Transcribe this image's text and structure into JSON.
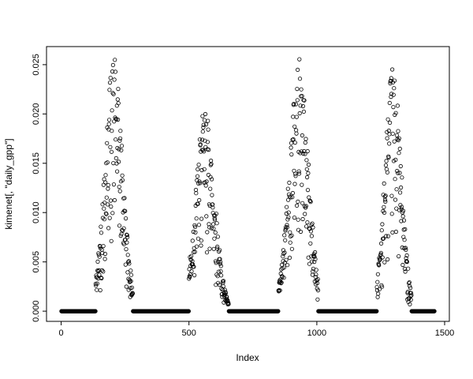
{
  "figure": {
    "background": "#ffffff",
    "point_color": "#000000",
    "axis_color": "#000000",
    "text_color": "#000000"
  },
  "chart_data": {
    "type": "scatter",
    "title": "",
    "xlabel": "Index",
    "ylabel": "kimenet[, \"daily_gpp\"]",
    "x_range": [
      1,
      1460
    ],
    "y_range": [
      0,
      0.0258
    ],
    "x_ticks": [
      0,
      500,
      1000,
      1500
    ],
    "x_tick_labels": [
      "0",
      "500",
      "1000",
      "1500"
    ],
    "y_ticks": [
      0,
      0.005,
      0.01,
      0.015,
      0.02,
      0.025
    ],
    "y_tick_labels": [
      "0.000",
      "0.005",
      "0.010",
      "0.015",
      "0.020",
      "0.025"
    ],
    "n_points": 1460,
    "marker": "open-circle",
    "marker_radius_px": 2.2,
    "grid": false,
    "legend": null,
    "box": true,
    "description": "Daily GPP time series plotted against index: near-zero dormant-season baseline with four growing-season peaks (approx. yearly cycles)",
    "baseline_value": 0,
    "baseline_segments": [
      [
        1,
        134
      ],
      [
        281,
        499
      ],
      [
        656,
        849
      ],
      [
        1006,
        1234
      ],
      [
        1371,
        1460
      ]
    ],
    "peaks": [
      {
        "rise_start": 135,
        "center": 205,
        "fall_end": 280,
        "max": 0.0258,
        "sigma": 35
      },
      {
        "rise_start": 500,
        "center": 563,
        "fall_end": 655,
        "max": 0.0206,
        "sigma": 37
      },
      {
        "rise_start": 850,
        "center": 930,
        "fall_end": 1005,
        "max": 0.0257,
        "sigma": 37
      },
      {
        "rise_start": 1235,
        "center": 1298,
        "fall_end": 1370,
        "max": 0.0247,
        "sigma": 32
      }
    ],
    "noise_model": {
      "type": "multiplicative-uniform",
      "min_factor": 0.22,
      "max_factor": 1.0,
      "bias_exp": 0.6,
      "seed": 42
    }
  }
}
